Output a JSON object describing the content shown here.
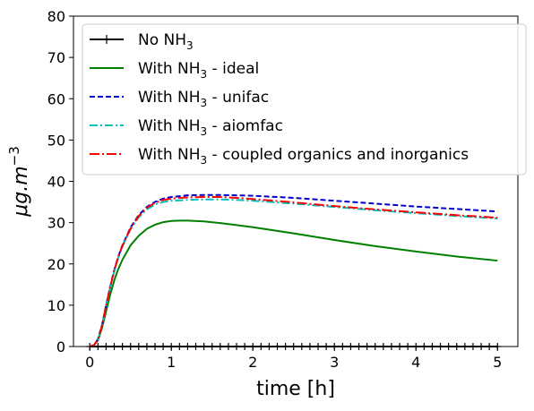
{
  "chart_data": {
    "type": "line",
    "title": "",
    "xlabel": "time [h]",
    "ylabel_parts": {
      "base": "μg.m",
      "sup": "−3"
    },
    "xlim": [
      -0.2,
      5.25
    ],
    "ylim": [
      0,
      80
    ],
    "x_ticks": [
      0,
      1,
      2,
      3,
      4,
      5
    ],
    "x_tick_labels": [
      "0",
      "1",
      "2",
      "3",
      "4",
      "5"
    ],
    "y_ticks": [
      0,
      10,
      20,
      30,
      40,
      50,
      60,
      70,
      80
    ],
    "y_tick_labels": [
      "0",
      "10",
      "20",
      "30",
      "40",
      "50",
      "60",
      "70",
      "80"
    ],
    "grid": false,
    "legend_position": "top-right",
    "series": [
      {
        "legend": {
          "pre": "No NH",
          "sub": "3",
          "post": ""
        },
        "color": "#000000",
        "dash": "solid",
        "marker": "plus",
        "x": [
          0.0,
          0.1,
          0.2,
          0.3,
          0.4,
          0.5,
          0.6,
          0.7,
          0.8,
          0.9,
          1.0,
          1.1,
          1.2,
          1.3,
          1.4,
          1.5,
          1.6,
          1.7,
          1.8,
          1.9,
          2.0,
          2.1,
          2.2,
          2.3,
          2.4,
          2.5,
          2.6,
          2.7,
          2.8,
          2.9,
          3.0,
          3.1,
          3.2,
          3.3,
          3.4,
          3.5,
          3.6,
          3.7,
          3.8,
          3.9,
          4.0,
          4.1,
          4.2,
          4.3,
          4.4,
          4.5,
          4.6,
          4.7,
          4.8,
          4.9,
          5.0
        ],
        "y": [
          0,
          0,
          0,
          0,
          0,
          0,
          0,
          0,
          0,
          0,
          0,
          0,
          0,
          0,
          0,
          0,
          0,
          0,
          0,
          0,
          0,
          0,
          0,
          0,
          0,
          0,
          0,
          0,
          0,
          0,
          0,
          0,
          0,
          0,
          0,
          0,
          0,
          0,
          0,
          0,
          0,
          0,
          0,
          0,
          0,
          0,
          0,
          0,
          0,
          0,
          0
        ]
      },
      {
        "legend": {
          "pre": "With NH",
          "sub": "3",
          "post": " - ideal"
        },
        "color": "#008000",
        "dash": "solid",
        "marker": "none",
        "x": [
          0.0,
          0.05,
          0.1,
          0.15,
          0.2,
          0.25,
          0.3,
          0.35,
          0.4,
          0.5,
          0.6,
          0.7,
          0.8,
          0.9,
          1.0,
          1.1,
          1.2,
          1.4,
          1.6,
          1.8,
          2.0,
          2.5,
          3.0,
          3.5,
          4.0,
          4.5,
          5.0
        ],
        "y": [
          0,
          0.3,
          1.5,
          4.5,
          8.5,
          12.5,
          16.0,
          18.8,
          21.0,
          24.5,
          26.8,
          28.5,
          29.5,
          30.1,
          30.4,
          30.5,
          30.5,
          30.3,
          29.9,
          29.4,
          28.9,
          27.4,
          25.8,
          24.3,
          23.0,
          21.8,
          20.8
        ]
      },
      {
        "legend": {
          "pre": "With NH",
          "sub": "3",
          "post": " - unifac"
        },
        "color": "#0000cc",
        "dash": "dashed",
        "marker": "none",
        "x": [
          0.0,
          0.05,
          0.1,
          0.15,
          0.2,
          0.25,
          0.3,
          0.35,
          0.4,
          0.5,
          0.6,
          0.7,
          0.8,
          0.9,
          1.0,
          1.1,
          1.2,
          1.4,
          1.6,
          1.8,
          2.0,
          2.5,
          3.0,
          3.5,
          4.0,
          4.5,
          5.0
        ],
        "y": [
          0,
          0.3,
          1.8,
          5.2,
          10.0,
          14.5,
          18.5,
          21.8,
          24.5,
          28.8,
          31.8,
          33.8,
          35.0,
          35.8,
          36.2,
          36.4,
          36.6,
          36.7,
          36.7,
          36.6,
          36.5,
          36.0,
          35.3,
          34.6,
          33.9,
          33.3,
          32.7
        ]
      },
      {
        "legend": {
          "pre": "With NH",
          "sub": "3",
          "post": " - aiomfac"
        },
        "color": "#00bfbf",
        "dash": "dashdot",
        "marker": "none",
        "x": [
          0.0,
          0.05,
          0.1,
          0.15,
          0.2,
          0.25,
          0.3,
          0.35,
          0.4,
          0.5,
          0.6,
          0.7,
          0.8,
          0.9,
          1.0,
          1.1,
          1.2,
          1.4,
          1.6,
          1.8,
          2.0,
          2.5,
          3.0,
          3.5,
          4.0,
          4.5,
          5.0
        ],
        "y": [
          0,
          0.3,
          1.7,
          5.0,
          9.8,
          14.2,
          18.2,
          21.5,
          24.2,
          28.4,
          31.3,
          33.2,
          34.4,
          35.0,
          35.3,
          35.4,
          35.5,
          35.6,
          35.6,
          35.5,
          35.3,
          34.6,
          33.8,
          33.0,
          32.3,
          31.6,
          31.0
        ]
      },
      {
        "legend": {
          "pre": "With NH",
          "sub": "3",
          "post": " - coupled organics and inorganics"
        },
        "color": "#ff0000",
        "dash": "dashdot2",
        "marker": "none",
        "x": [
          0.0,
          0.05,
          0.1,
          0.15,
          0.2,
          0.25,
          0.3,
          0.35,
          0.4,
          0.5,
          0.6,
          0.7,
          0.8,
          0.9,
          1.0,
          1.1,
          1.2,
          1.4,
          1.6,
          1.8,
          2.0,
          2.5,
          3.0,
          3.5,
          4.0,
          4.5,
          5.0
        ],
        "y": [
          0,
          0.3,
          1.7,
          5.1,
          9.9,
          14.4,
          18.4,
          21.7,
          24.4,
          28.6,
          31.6,
          33.6,
          34.8,
          35.5,
          35.8,
          36.0,
          36.1,
          36.2,
          36.2,
          36.0,
          35.7,
          34.9,
          34.0,
          33.2,
          32.5,
          31.8,
          31.2
        ]
      }
    ]
  }
}
